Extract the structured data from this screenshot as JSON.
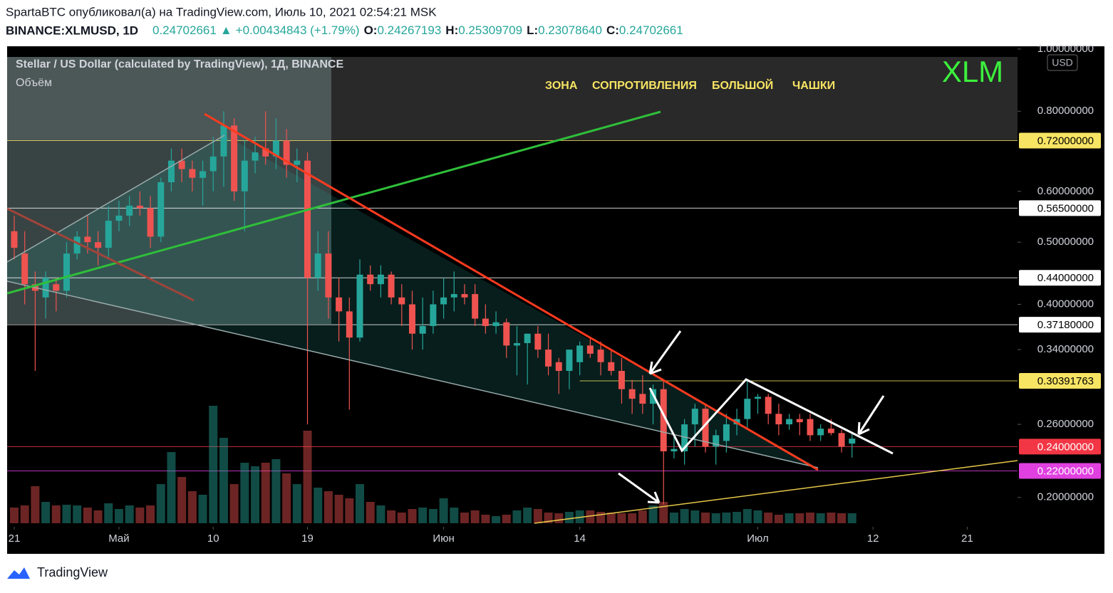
{
  "header": {
    "source": "SpartaBTC опубликовал(а) на TradingView.com, Июль 10, 2021 02:54:21 MSK",
    "symbol": "BINANCE:XLMUSD, 1D",
    "price": "0.24702661",
    "change": "+0.00434843 (+1.79%)",
    "ohlc": [
      {
        "label": "O:",
        "value": "0.24267193"
      },
      {
        "label": "H:",
        "value": "0.25309709"
      },
      {
        "label": "L:",
        "value": "0.23078640"
      },
      {
        "label": "C:",
        "value": "0.24702661"
      }
    ]
  },
  "footer": "TradingView",
  "chart_data": {
    "type": "candlestick",
    "title": "Stellar / US Dollar (calculated by TradingView), 1Д, BINANCE",
    "volume_name": "Объём",
    "currency": "USD",
    "label": "XLM",
    "annotations": [
      "ЗОНА",
      "СОПРОТИВЛЕНИЯ",
      "БОЛЬШОЙ",
      "ЧАШКИ"
    ],
    "log_scale": true,
    "up_color": "#26a69a",
    "down_color": "#ef5350",
    "open": [
      0.52,
      0.48,
      0.43,
      0.41,
      0.43,
      0.42,
      0.48,
      0.51,
      0.5,
      0.49,
      0.54,
      0.55,
      0.57,
      0.565,
      0.51,
      0.62,
      0.67,
      0.65,
      0.63,
      0.645,
      0.68,
      0.76,
      0.6,
      0.67,
      0.7,
      0.68,
      0.72,
      0.66,
      0.67,
      0.44,
      0.48,
      0.41,
      0.39,
      0.355,
      0.445,
      0.43,
      0.445,
      0.41,
      0.4,
      0.36,
      0.37,
      0.4,
      0.41,
      0.415,
      0.415,
      0.38,
      0.37,
      0.375,
      0.345,
      0.348,
      0.36,
      0.34,
      0.325,
      0.315,
      0.325,
      0.345,
      0.34,
      0.325,
      0.315,
      0.295,
      0.29,
      0.28,
      0.295,
      0.236,
      0.236,
      0.26,
      0.275,
      0.24,
      0.245,
      0.26,
      0.265,
      0.285,
      0.287,
      0.27,
      0.26,
      0.265,
      0.265,
      0.25,
      0.256,
      0.252,
      0.24267193
    ],
    "high": [
      0.55,
      0.52,
      0.45,
      0.45,
      0.44,
      0.5,
      0.52,
      0.55,
      0.52,
      0.57,
      0.58,
      0.59,
      0.6,
      0.59,
      0.63,
      0.7,
      0.7,
      0.67,
      0.67,
      0.73,
      0.8,
      0.78,
      0.72,
      0.73,
      0.8,
      0.78,
      0.75,
      0.7,
      0.69,
      0.52,
      0.52,
      0.44,
      0.41,
      0.47,
      0.46,
      0.46,
      0.45,
      0.43,
      0.42,
      0.41,
      0.42,
      0.44,
      0.45,
      0.43,
      0.43,
      0.4,
      0.39,
      0.38,
      0.37,
      0.36,
      0.37,
      0.36,
      0.33,
      0.34,
      0.35,
      0.355,
      0.35,
      0.34,
      0.33,
      0.305,
      0.31,
      0.3,
      0.305,
      0.25,
      0.265,
      0.28,
      0.28,
      0.255,
      0.27,
      0.275,
      0.305,
      0.29,
      0.29,
      0.28,
      0.27,
      0.27,
      0.27,
      0.26,
      0.265,
      0.255,
      0.25309709
    ],
    "low": [
      0.47,
      0.4,
      0.315,
      0.38,
      0.39,
      0.41,
      0.47,
      0.48,
      0.46,
      0.47,
      0.52,
      0.53,
      0.55,
      0.49,
      0.5,
      0.6,
      0.62,
      0.6,
      0.57,
      0.6,
      0.61,
      0.58,
      0.52,
      0.64,
      0.66,
      0.65,
      0.63,
      0.62,
      0.26,
      0.42,
      0.38,
      0.35,
      0.274,
      0.35,
      0.42,
      0.41,
      0.4,
      0.37,
      0.34,
      0.34,
      0.36,
      0.38,
      0.39,
      0.4,
      0.37,
      0.36,
      0.36,
      0.33,
      0.31,
      0.3,
      0.33,
      0.31,
      0.29,
      0.295,
      0.31,
      0.33,
      0.31,
      0.31,
      0.28,
      0.27,
      0.27,
      0.26,
      0.195,
      0.23,
      0.225,
      0.24,
      0.235,
      0.225,
      0.235,
      0.25,
      0.255,
      0.27,
      0.26,
      0.25,
      0.255,
      0.25,
      0.245,
      0.245,
      0.25,
      0.235,
      0.2307864
    ],
    "close": [
      0.49,
      0.43,
      0.42,
      0.44,
      0.42,
      0.48,
      0.51,
      0.5,
      0.49,
      0.54,
      0.55,
      0.57,
      0.565,
      0.51,
      0.62,
      0.67,
      0.65,
      0.63,
      0.645,
      0.68,
      0.76,
      0.6,
      0.67,
      0.69,
      0.68,
      0.72,
      0.66,
      0.67,
      0.44,
      0.48,
      0.41,
      0.39,
      0.355,
      0.445,
      0.43,
      0.445,
      0.41,
      0.4,
      0.36,
      0.37,
      0.4,
      0.41,
      0.415,
      0.41,
      0.38,
      0.37,
      0.375,
      0.345,
      0.348,
      0.36,
      0.34,
      0.32,
      0.315,
      0.34,
      0.345,
      0.335,
      0.325,
      0.315,
      0.295,
      0.285,
      0.28,
      0.295,
      0.236,
      0.238,
      0.26,
      0.275,
      0.24,
      0.25,
      0.26,
      0.265,
      0.285,
      0.287,
      0.27,
      0.26,
      0.265,
      0.262,
      0.25,
      0.256,
      0.252,
      0.24,
      0.24702661
    ],
    "volume": [
      22,
      25,
      52,
      30,
      25,
      26,
      25,
      22,
      18,
      28,
      20,
      25,
      22,
      25,
      55,
      100,
      65,
      45,
      40,
      165,
      120,
      55,
      85,
      80,
      85,
      90,
      70,
      55,
      130,
      50,
      45,
      40,
      35,
      55,
      30,
      25,
      18,
      15,
      20,
      22,
      20,
      35,
      22,
      15,
      18,
      12,
      10,
      12,
      18,
      22,
      20,
      15,
      14,
      16,
      18,
      18,
      16,
      15,
      14,
      14,
      18,
      25,
      30,
      15,
      20,
      18,
      15,
      14,
      15,
      16,
      20,
      18,
      15,
      12,
      14,
      14,
      15,
      14,
      15,
      14,
      14
    ],
    "vlim": [
      0,
      170
    ],
    "xlim": [
      -0.68,
      95.8
    ],
    "xticks": [
      {
        "value": 0,
        "label": "21"
      },
      {
        "value": 10,
        "label": "Май"
      },
      {
        "value": 19,
        "label": "10"
      },
      {
        "value": 28,
        "label": "19"
      },
      {
        "value": 41,
        "label": "Июн"
      },
      {
        "value": 54,
        "label": "14"
      },
      {
        "value": 71,
        "label": "Июл"
      },
      {
        "value": 82,
        "label": "12"
      },
      {
        "value": 91,
        "label": "21"
      }
    ],
    "ylim": [
      0.18,
      1.01
    ],
    "yticks": [
      {
        "value": 1,
        "label": "1.00000000"
      },
      {
        "value": 0.8,
        "label": "0.80000000"
      },
      {
        "value": 0.6,
        "label": "0.60000000"
      },
      {
        "value": 0.5,
        "label": "0.50000000"
      },
      {
        "value": 0.4,
        "label": "0.40000000"
      },
      {
        "value": 0.34,
        "label": "0.34000000"
      },
      {
        "value": 0.26,
        "label": "0.26000000"
      },
      {
        "value": 0.2,
        "label": "0.20000000"
      }
    ],
    "levels": [
      {
        "value": 0.72,
        "label": "0.72000000",
        "color": "#f7e463"
      },
      {
        "value": 0.565,
        "label": "0.56500000",
        "color": "#ffffff"
      },
      {
        "value": 0.44,
        "label": "0.44000000",
        "color": "#ffffff"
      },
      {
        "value": 0.3718,
        "label": "0.37180000",
        "color": "#ffffff"
      },
      {
        "value": 0.30391763,
        "label": "0.30391763",
        "color": "#f7e463"
      },
      {
        "value": 0.24,
        "label": "0.24000000",
        "color": "#f23645"
      },
      {
        "value": 0.22,
        "label": "0.22000000",
        "color": "#e040e0"
      }
    ]
  }
}
